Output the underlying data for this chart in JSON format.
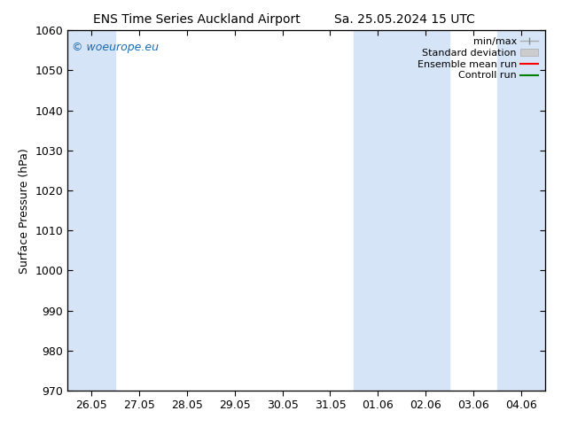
{
  "title_left": "ENS Time Series Auckland Airport",
  "title_right": "Sa. 25.05.2024 15 UTC",
  "ylabel": "Surface Pressure (hPa)",
  "ylim": [
    970,
    1060
  ],
  "yticks": [
    970,
    980,
    990,
    1000,
    1010,
    1020,
    1030,
    1040,
    1050,
    1060
  ],
  "xtick_labels": [
    "26.05",
    "27.05",
    "28.05",
    "29.05",
    "30.05",
    "31.05",
    "01.06",
    "02.06",
    "03.06",
    "04.06"
  ],
  "xtick_positions": [
    0,
    1,
    2,
    3,
    4,
    5,
    6,
    7,
    8,
    9
  ],
  "xlim": [
    -0.5,
    9.5
  ],
  "shaded_bands": [
    {
      "xmin": -0.5,
      "xmax": 0.5
    },
    {
      "xmin": 5.5,
      "xmax": 7.5
    },
    {
      "xmin": 8.5,
      "xmax": 9.5
    }
  ],
  "band_color": "#d6e4f7",
  "watermark_text": "© woeurope.eu",
  "watermark_color": "#1a6bb5",
  "bg_color": "#ffffff",
  "font_size": 9,
  "title_font_size": 10,
  "legend_fontsize": 8
}
